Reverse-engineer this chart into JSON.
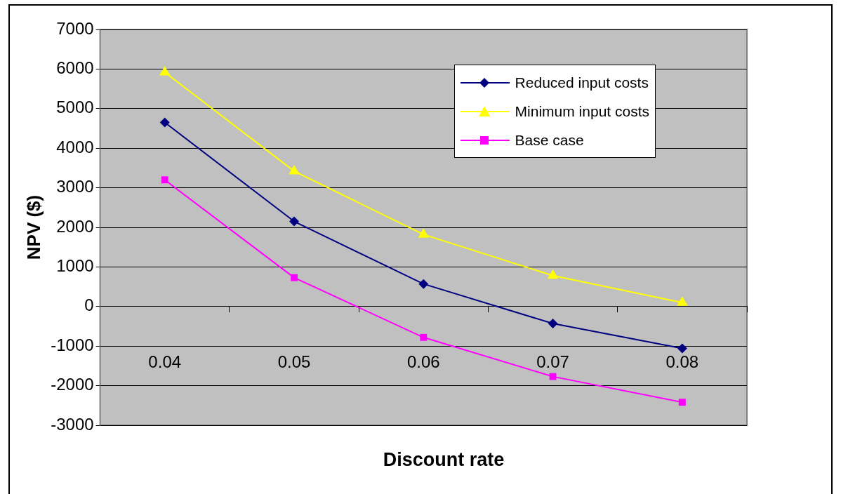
{
  "chart_data": {
    "type": "line",
    "xlabel": "Discount rate",
    "ylabel": "NPV ($)",
    "categories": [
      "0.04",
      "0.05",
      "0.06",
      "0.07",
      "0.08"
    ],
    "series": [
      {
        "name": "Reduced input costs",
        "color": "#000080",
        "marker": "diamond",
        "values": [
          4650,
          2150,
          570,
          -430,
          -1060
        ]
      },
      {
        "name": "Minimum input costs",
        "color": "#ffff00",
        "marker": "triangle",
        "values": [
          5920,
          3420,
          1820,
          780,
          100
        ]
      },
      {
        "name": "Base case",
        "color": "#ff00ff",
        "marker": "square",
        "values": [
          3200,
          730,
          -780,
          -1770,
          -2420
        ]
      }
    ],
    "ylim": [
      -3000,
      7000
    ],
    "yticks": [
      -3000,
      -2000,
      -1000,
      0,
      1000,
      2000,
      3000,
      4000,
      5000,
      6000,
      7000
    ],
    "grid": "y",
    "legend": "top right",
    "line_style": "solid"
  }
}
